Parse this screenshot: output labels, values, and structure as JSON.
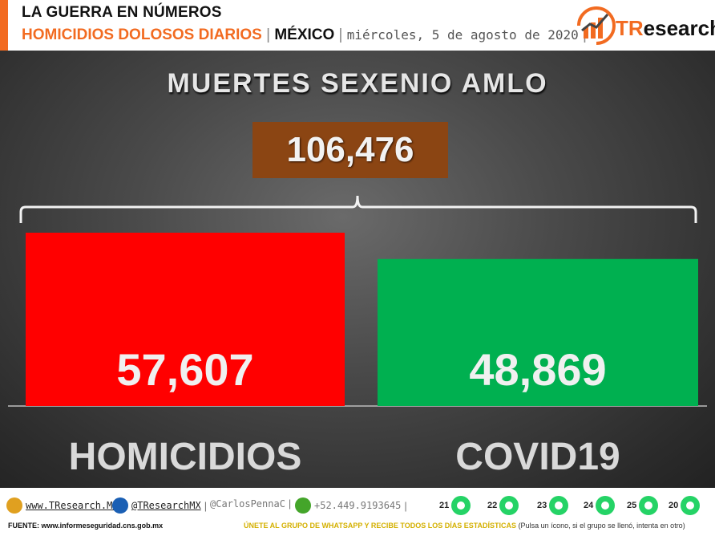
{
  "header": {
    "line1": "LA GUERRA EN NÚMEROS",
    "line2_main": "HOMICIDIOS DOLOSOS DIARIOS",
    "line2_sep": " | ",
    "line2_region": "MÉXICO",
    "line2_date": "miércoles, 5 de agosto de 2020",
    "logo_text_t": "TR",
    "logo_text_rest": "esearch"
  },
  "colors": {
    "accent": "#f26b21",
    "total_box": "#8b4513",
    "homicidios": "#ff0000",
    "covid": "#00b050"
  },
  "chart_data": {
    "type": "bar",
    "title": "MUERTES SEXENIO AMLO",
    "total_label": "106,476",
    "total": 106476,
    "categories": [
      "HOMICIDIOS",
      "COVID19"
    ],
    "values": [
      57607,
      48869
    ],
    "value_labels": [
      "57,607",
      "48,869"
    ],
    "xlabel": "",
    "ylabel": ""
  },
  "footer": {
    "website": "www.TResearch.Mx",
    "twitter": "@TResearchMX",
    "author": "@CarlosPennaC",
    "phone": "+52.449.9193645",
    "whatsapp_groups": [
      "21",
      "22",
      "23",
      "24",
      "25",
      "20"
    ],
    "source": "FUENTE: www.informeseguridad.cns.gob.mx",
    "cta": "ÚNETE AL GRUPO DE WHATSAPP Y RECIBE TODOS LOS DÍAS ESTADÍSTICAS",
    "cta_note": "(Pulsa un ícono, si el grupo se llenó, intenta en otro)"
  }
}
